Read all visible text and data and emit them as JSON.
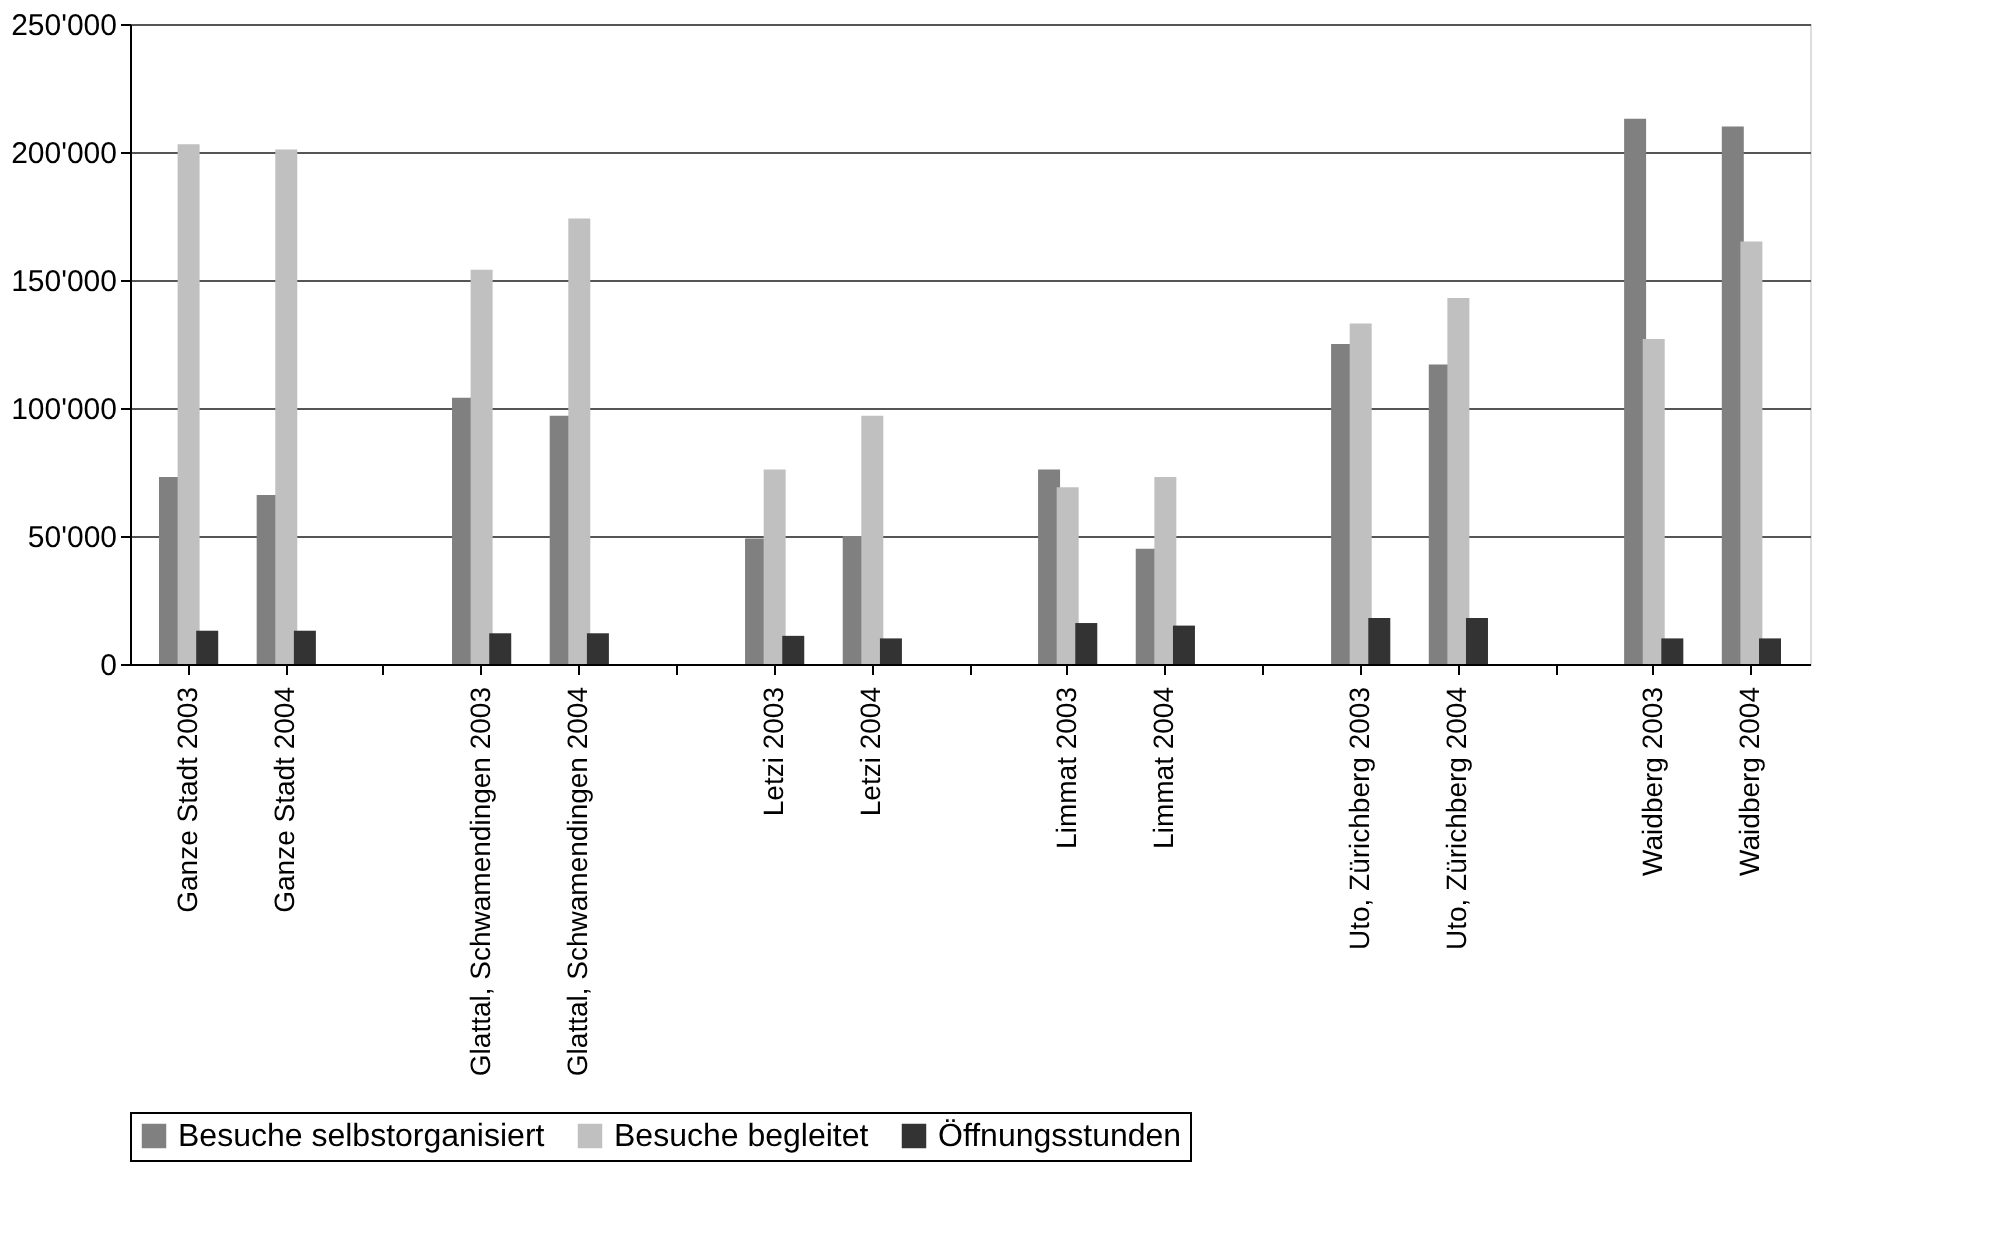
{
  "chart_data": {
    "type": "bar",
    "categories": [
      "Ganze Stadt 2003",
      "Ganze Stadt 2004",
      null,
      "Glattal, Schwamendingen 2003",
      "Glattal, Schwamendingen 2004",
      null,
      "Letzi 2003",
      "Letzi 2004",
      null,
      "Limmat 2003",
      "Limmat 2004",
      null,
      "Uto, Zürichberg 2003",
      "Uto, Zürichberg 2004",
      null,
      "Waidberg 2003",
      "Waidberg 2004"
    ],
    "series": [
      {
        "name": "Besuche selbstorganisiert",
        "color": "#808080",
        "values": [
          73000,
          66000,
          null,
          104000,
          97000,
          null,
          49000,
          50000,
          null,
          76000,
          45000,
          null,
          125000,
          117000,
          null,
          213000,
          210000
        ]
      },
      {
        "name": "Besuche begleitet",
        "color": "#c0c0c0",
        "values": [
          203000,
          201000,
          null,
          154000,
          174000,
          null,
          76000,
          97000,
          null,
          69000,
          73000,
          null,
          133000,
          143000,
          null,
          127000,
          165000
        ]
      },
      {
        "name": "Öffnungsstunden",
        "color": "#333333",
        "values": [
          13000,
          13000,
          null,
          12000,
          12000,
          null,
          11000,
          10000,
          null,
          16000,
          15000,
          null,
          18000,
          18000,
          null,
          10000,
          10000
        ]
      }
    ],
    "ylim": [
      0,
      250000
    ],
    "yticks": [
      0,
      {
        "value": 50000,
        "label": "50'000"
      },
      {
        "value": 100000,
        "label": "100'000"
      },
      {
        "value": 150000,
        "label": "150'000"
      },
      {
        "value": 200000,
        "label": "200'000"
      },
      {
        "value": 250000,
        "label": "250'000"
      }
    ],
    "grid": "y",
    "legend": "bottom"
  }
}
